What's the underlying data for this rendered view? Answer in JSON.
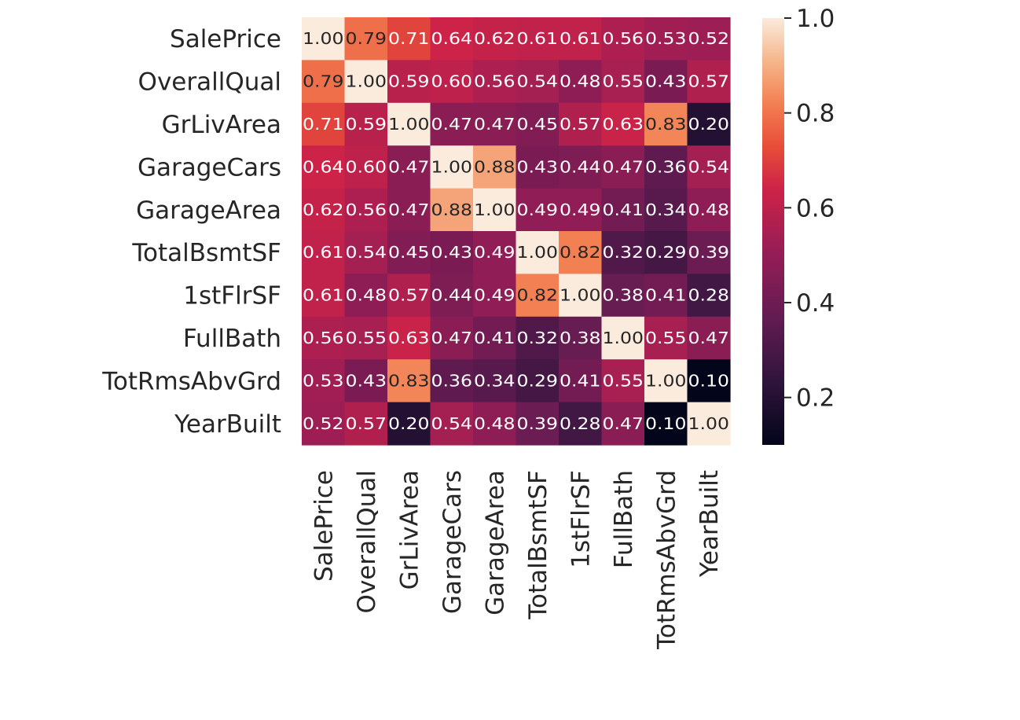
{
  "chart_data": {
    "type": "heatmap",
    "title": "",
    "xlabel": "",
    "ylabel": "",
    "labels": [
      "SalePrice",
      "OverallQual",
      "GrLivArea",
      "GarageCars",
      "GarageArea",
      "TotalBsmtSF",
      "1stFlrSF",
      "FullBath",
      "TotRmsAbvGrd",
      "YearBuilt"
    ],
    "cell_labels": [
      [
        "1.00",
        "0.79",
        "0.71",
        "0.64",
        "0.62",
        "0.61",
        "0.61",
        "0.56",
        "0.53",
        "0.52"
      ],
      [
        "0.79",
        "1.00",
        "0.59",
        "0.60",
        "0.56",
        "0.54",
        "0.48",
        "0.55",
        "0.43",
        "0.57"
      ],
      [
        "0.71",
        "0.59",
        "1.00",
        "0.47",
        "0.47",
        "0.45",
        "0.57",
        "0.63",
        "0.83",
        "0.20"
      ],
      [
        "0.64",
        "0.60",
        "0.47",
        "1.00",
        "0.88",
        "0.43",
        "0.44",
        "0.47",
        "0.36",
        "0.54"
      ],
      [
        "0.62",
        "0.56",
        "0.47",
        "0.88",
        "1.00",
        "0.49",
        "0.49",
        "0.41",
        "0.34",
        "0.48"
      ],
      [
        "0.61",
        "0.54",
        "0.45",
        "0.43",
        "0.49",
        "1.00",
        "0.82",
        "0.32",
        "0.29",
        "0.39"
      ],
      [
        "0.61",
        "0.48",
        "0.57",
        "0.44",
        "0.49",
        "0.82",
        "1.00",
        "0.38",
        "0.41",
        "0.28"
      ],
      [
        "0.56",
        "0.55",
        "0.63",
        "0.47",
        "0.41",
        "0.32",
        "0.38",
        "1.00",
        "0.55",
        "0.47"
      ],
      [
        "0.53",
        "0.43",
        "0.83",
        "0.36",
        "0.34",
        "0.29",
        "0.41",
        "0.55",
        "1.00",
        "0.10"
      ],
      [
        "0.52",
        "0.57",
        "0.20",
        "0.54",
        "0.48",
        "0.39",
        "0.28",
        "0.47",
        "0.10",
        "1.00"
      ]
    ],
    "colorbar": {
      "vmin": 0.1,
      "vmax": 1.0,
      "ticks": [
        "0.2",
        "0.4",
        "0.6",
        "0.8",
        "1.0"
      ],
      "colormap": "rocket"
    },
    "grid": false,
    "legend": "colorbar-right"
  }
}
